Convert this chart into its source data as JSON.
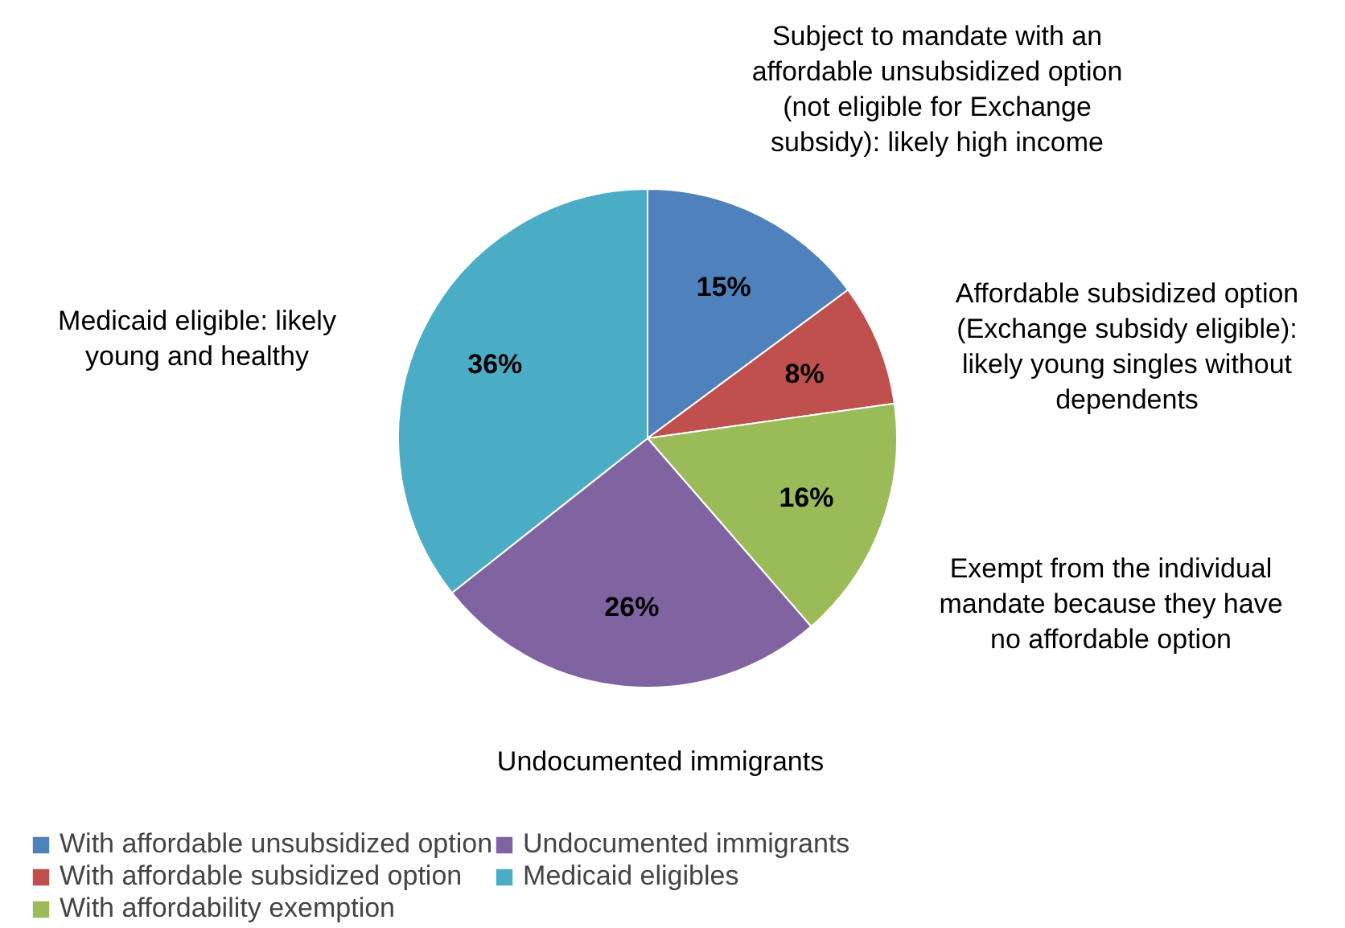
{
  "chart_data": {
    "type": "pie",
    "categories": [
      "With affordable unsubsidized option",
      "With affordable subsidized option",
      "With affordability exemption",
      "Undocumented immigrants",
      "Medicaid eligibles"
    ],
    "values": [
      15,
      8,
      16,
      26,
      36
    ],
    "value_labels": [
      "15%",
      "8%",
      "16%",
      "26%",
      "36%"
    ],
    "colors": [
      "#4f81bd",
      "#c0504d",
      "#9bbb59",
      "#8064a2",
      "#4bacc6"
    ],
    "annotations": [
      "Subject to mandate with an affordable unsubsidized option (not eligible for Exchange subsidy): likely high income",
      "Affordable subsidized option (Exchange subsidy eligible): likely young singles without dependents",
      "Exempt from the individual mandate because they have no affordable option",
      "Undocumented immigrants",
      "Medicaid eligible: likely young and healthy"
    ],
    "legend": "bottom"
  }
}
